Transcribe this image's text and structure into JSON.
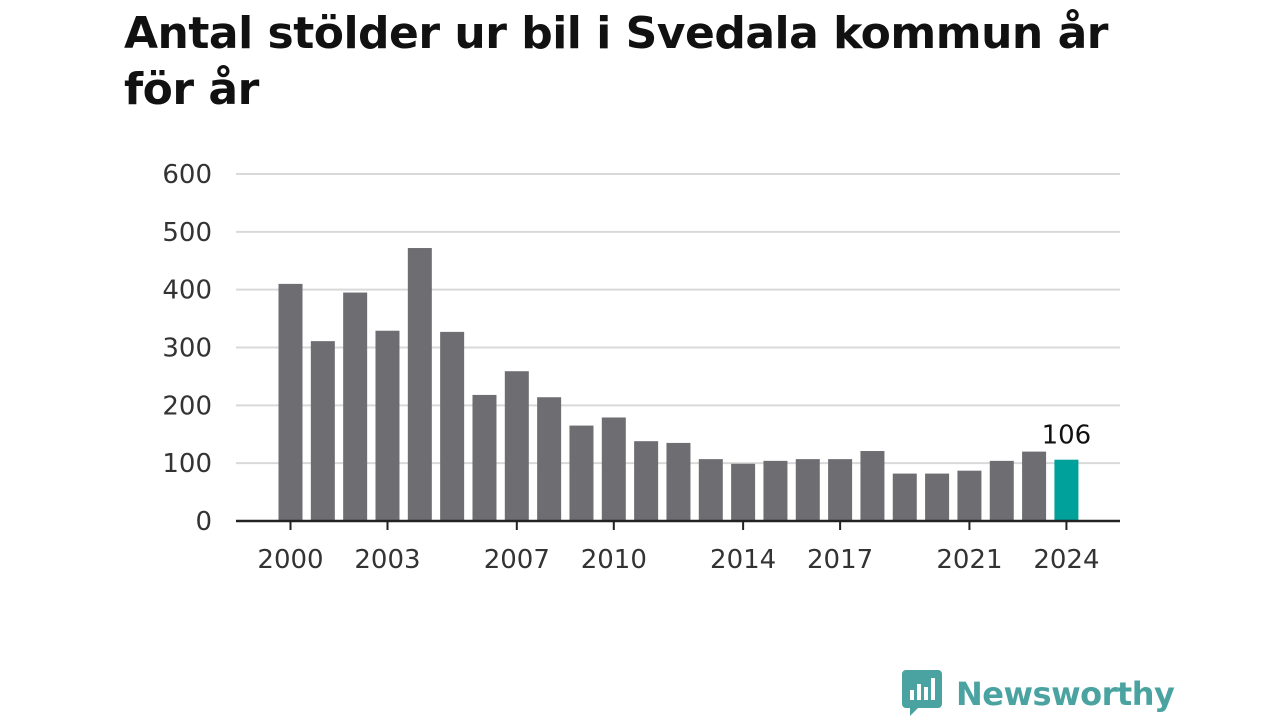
{
  "chart_data": {
    "type": "bar",
    "title": "Antal stölder ur bil i Svedala kommun år för år",
    "xlabel": "",
    "ylabel": "",
    "ylim": [
      0,
      600
    ],
    "yticks": [
      0,
      100,
      200,
      300,
      400,
      500,
      600
    ],
    "xtick_labels": [
      "2000",
      "2003",
      "2007",
      "2010",
      "2014",
      "2017",
      "2021",
      "2024"
    ],
    "categories": [
      "2000",
      "2001",
      "2002",
      "2003",
      "2004",
      "2005",
      "2006",
      "2007",
      "2008",
      "2009",
      "2010",
      "2011",
      "2012",
      "2013",
      "2014",
      "2015",
      "2016",
      "2017",
      "2018",
      "2019",
      "2020",
      "2021",
      "2022",
      "2023",
      "2024"
    ],
    "values": [
      410,
      311,
      395,
      329,
      472,
      327,
      218,
      259,
      214,
      165,
      179,
      138,
      135,
      107,
      99,
      104,
      107,
      107,
      121,
      82,
      82,
      87,
      104,
      120,
      106
    ],
    "highlight_index": 24,
    "highlight_label": "106",
    "colors": {
      "bar": "#6e6d72",
      "highlight": "#00a19a",
      "grid": "#d9d9d9",
      "axis": "#222222"
    },
    "grid": true
  },
  "branding": {
    "name": "Newsworthy",
    "icon": "newsworthy-logo-icon",
    "color": "#4aa3a0"
  }
}
